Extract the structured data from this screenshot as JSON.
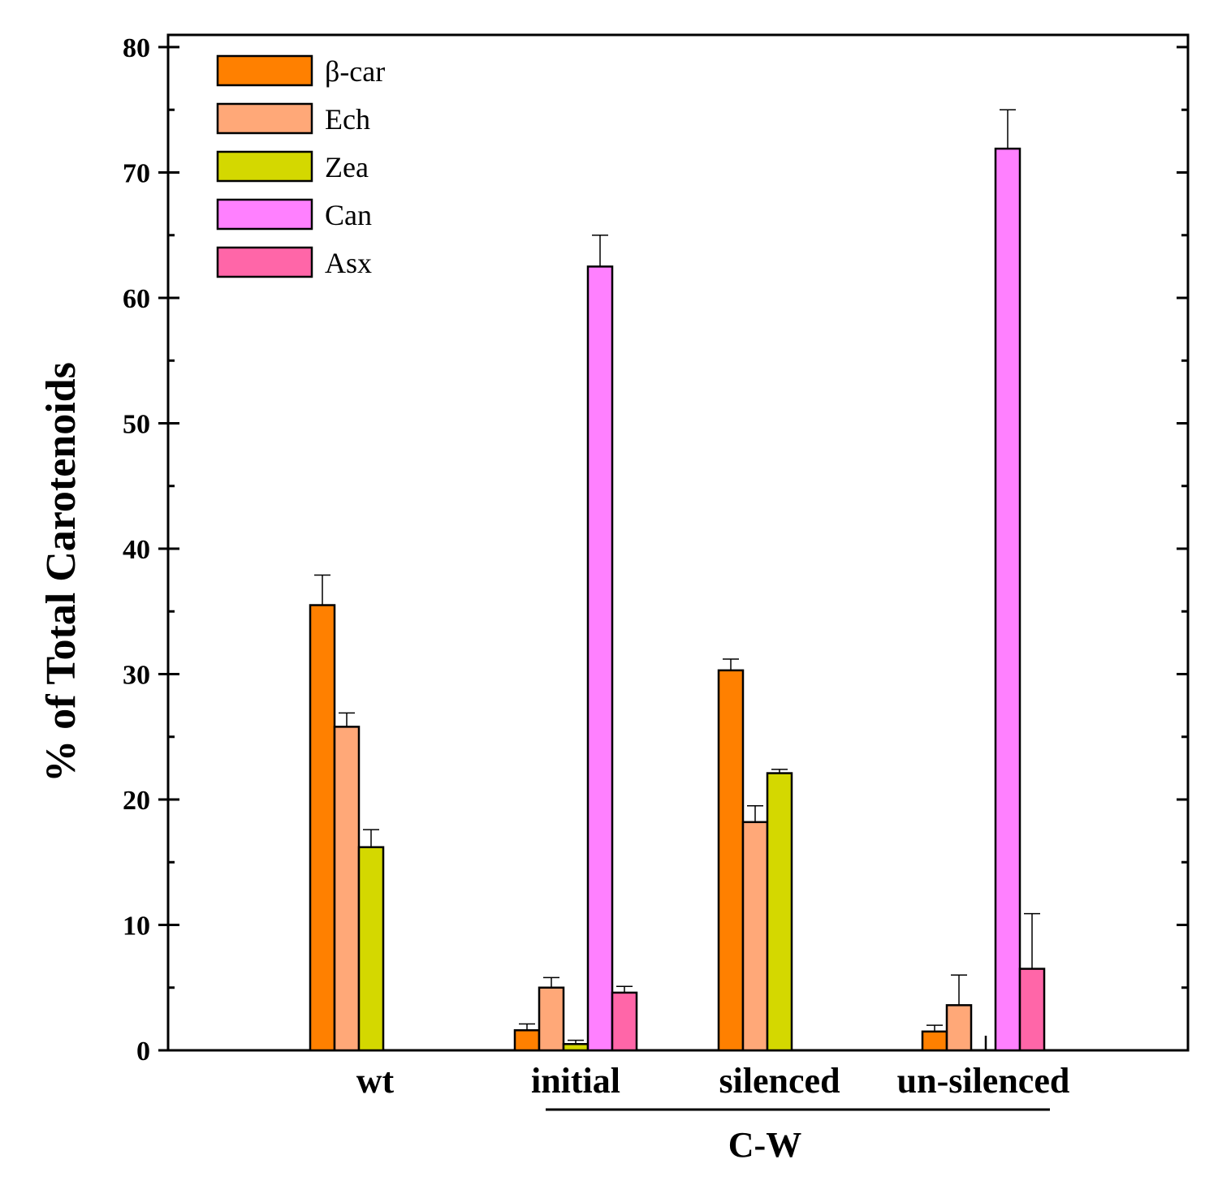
{
  "chart_data": {
    "type": "bar",
    "title": "",
    "xlabel": "",
    "ylabel": "% of Total Carotenoids",
    "ylim": [
      0,
      80
    ],
    "yticks": [
      0,
      10,
      20,
      30,
      40,
      50,
      60,
      70,
      80
    ],
    "ytick_labels": [
      "0",
      "10",
      "20",
      "30",
      "40",
      "50",
      "60",
      "70",
      "80"
    ],
    "categories": [
      "wt",
      "initial",
      "silenced",
      "un-silenced"
    ],
    "group_label": "C-W",
    "group_categories": [
      "initial",
      "silenced",
      "un-silenced"
    ],
    "legend_position": "top-left",
    "series": [
      {
        "name": "β-car",
        "color": "#FF8000",
        "values": [
          35.5,
          1.6,
          30.3,
          1.5
        ],
        "errors": [
          2.4,
          0.5,
          0.9,
          0.5
        ]
      },
      {
        "name": "Ech",
        "color": "#FFA878",
        "values": [
          25.8,
          5.0,
          18.2,
          3.6
        ],
        "errors": [
          1.1,
          0.8,
          1.3,
          2.4
        ]
      },
      {
        "name": "Zea",
        "color": "#D4D800",
        "values": [
          16.2,
          0.5,
          22.1,
          0.0
        ],
        "errors": [
          1.4,
          0.3,
          0.3,
          0.0
        ]
      },
      {
        "name": "Can",
        "color": "#FF80FF",
        "values": [
          0.0,
          62.5,
          0.0,
          71.9
        ],
        "errors": [
          0.0,
          2.5,
          0.0,
          3.1
        ]
      },
      {
        "name": "Asx",
        "color": "#FF66A8",
        "values": [
          0.0,
          4.6,
          0.0,
          6.5
        ],
        "errors": [
          0.0,
          0.5,
          0.0,
          4.4
        ]
      }
    ]
  }
}
